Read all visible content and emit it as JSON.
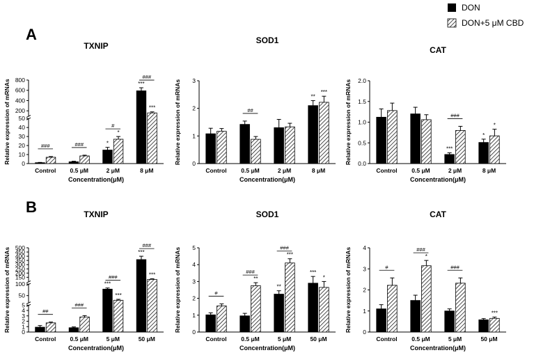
{
  "legend": {
    "items": [
      {
        "label": "DON",
        "fill": "solid",
        "color": "#000000"
      },
      {
        "label": "DON+5 μM CBD",
        "fill": "hatched",
        "color": "#000000"
      }
    ],
    "placement": "top-right"
  },
  "panel_letters": [
    "A",
    "B"
  ],
  "chart_data": [
    {
      "type": "bar",
      "panel": "A",
      "title": "TXNIP",
      "xlabel": "Concentration(μM)",
      "ylabel": "Relative expression of mRNAs",
      "categories": [
        "Control",
        "0.5 μM",
        "2 μM",
        "8 μM"
      ],
      "series": [
        {
          "name": "DON",
          "values": [
            1,
            2,
            15,
            590
          ],
          "errors": [
            0.3,
            0.6,
            3,
            60
          ]
        },
        {
          "name": "DON+5 μM CBD",
          "values": [
            7,
            8.5,
            27,
            160
          ],
          "errors": [
            0.8,
            0.8,
            3,
            20
          ]
        }
      ],
      "axis_segments": [
        {
          "range": [
            0,
            50
          ],
          "ticks": [
            0,
            10,
            20,
            30,
            40,
            50
          ]
        },
        {
          "range": [
            100,
            800
          ],
          "ticks": [
            200,
            400,
            600,
            800
          ]
        }
      ],
      "yticks": [
        0,
        10,
        20,
        30,
        40,
        50,
        200,
        400,
        600,
        800
      ],
      "ylim": [
        0,
        800
      ],
      "broken_axis": true,
      "annotations": [
        {
          "category": 0,
          "series": null,
          "text": "###",
          "type": "bracket"
        },
        {
          "category": 1,
          "series": null,
          "text": "###",
          "type": "bracket"
        },
        {
          "category": 2,
          "series": null,
          "text": "#",
          "type": "bracket"
        },
        {
          "category": 3,
          "series": null,
          "text": "###",
          "type": "bracket"
        },
        {
          "category": 2,
          "series": 0,
          "text": "*",
          "type": "star"
        },
        {
          "category": 2,
          "series": 1,
          "text": "*",
          "type": "star"
        },
        {
          "category": 3,
          "series": 0,
          "text": "***",
          "type": "star"
        },
        {
          "category": 3,
          "series": 1,
          "text": "***",
          "type": "star"
        }
      ]
    },
    {
      "type": "bar",
      "panel": "A",
      "title": "SOD1",
      "xlabel": "Concentration(μM)",
      "ylabel": "Relative expression of mRNAs",
      "categories": [
        "Control",
        "0.5 μM",
        "2 μM",
        "8 μM"
      ],
      "series": [
        {
          "name": "DON",
          "values": [
            1.08,
            1.42,
            1.3,
            2.1
          ],
          "errors": [
            0.2,
            0.12,
            0.3,
            0.18
          ]
        },
        {
          "name": "DON+5 μM CBD",
          "values": [
            1.17,
            0.88,
            1.33,
            2.22
          ],
          "errors": [
            0.1,
            0.1,
            0.13,
            0.22
          ]
        }
      ],
      "yticks": [
        0,
        1,
        2,
        3
      ],
      "ylim": [
        0,
        3
      ],
      "broken_axis": false,
      "annotations": [
        {
          "category": 1,
          "series": null,
          "text": "##",
          "type": "bracket"
        },
        {
          "category": 3,
          "series": 0,
          "text": "**",
          "type": "star"
        },
        {
          "category": 3,
          "series": 1,
          "text": "***",
          "type": "star"
        }
      ]
    },
    {
      "type": "bar",
      "panel": "A",
      "title": "CAT",
      "xlabel": "Concentration(μM)",
      "ylabel": "Relative expression of mRNAs",
      "categories": [
        "Control",
        "0.5 μM",
        "2 μM",
        "8 μM"
      ],
      "series": [
        {
          "name": "DON",
          "values": [
            1.12,
            1.2,
            0.22,
            0.51
          ],
          "errors": [
            0.2,
            0.16,
            0.04,
            0.08
          ]
        },
        {
          "name": "DON+5 μM CBD",
          "values": [
            1.28,
            1.06,
            0.8,
            0.67
          ],
          "errors": [
            0.18,
            0.12,
            0.1,
            0.16
          ]
        }
      ],
      "yticks": [
        0.0,
        0.5,
        1.0,
        1.5,
        2.0
      ],
      "ytick_labels": [
        "0.0",
        "0.5",
        "1.0",
        "1.5",
        "2.0"
      ],
      "ylim": [
        0,
        2
      ],
      "broken_axis": false,
      "annotations": [
        {
          "category": 2,
          "series": null,
          "text": "###",
          "type": "bracket"
        },
        {
          "category": 2,
          "series": 0,
          "text": "***",
          "type": "star"
        },
        {
          "category": 3,
          "series": 0,
          "text": "*",
          "type": "star"
        },
        {
          "category": 3,
          "series": 1,
          "text": "*",
          "type": "star"
        }
      ]
    },
    {
      "type": "bar",
      "panel": "B",
      "title": "TXNIP",
      "xlabel": "Concentration(μM)",
      "ylabel": "Relative expression of mRNAs",
      "categories": [
        "Control",
        "0.5 μM",
        "5 μM",
        "50 μM"
      ],
      "series": [
        {
          "name": "DON",
          "values": [
            0.9,
            0.8,
            78,
            360
          ],
          "errors": [
            0.3,
            0.15,
            5,
            40
          ]
        },
        {
          "name": "DON+5 μM CBD",
          "values": [
            1.7,
            2.8,
            30,
            125
          ],
          "errors": [
            0.15,
            0.25,
            4,
            8
          ]
        }
      ],
      "axis_segments": [
        {
          "range": [
            0,
            5
          ],
          "ticks": [
            0,
            1,
            2,
            3,
            4,
            5
          ]
        },
        {
          "range": [
            20,
            100
          ],
          "ticks": [
            50,
            100
          ]
        },
        {
          "range": [
            100,
            500
          ],
          "ticks": [
            150,
            200,
            250,
            300,
            350,
            400,
            450,
            500
          ]
        }
      ],
      "yticks": [
        0,
        1,
        2,
        3,
        4,
        5,
        50,
        100,
        150,
        200,
        250,
        300,
        350,
        400,
        450,
        500
      ],
      "ylim": [
        0,
        500
      ],
      "broken_axis": true,
      "annotations": [
        {
          "category": 0,
          "series": null,
          "text": "##",
          "type": "bracket"
        },
        {
          "category": 1,
          "series": null,
          "text": "###",
          "type": "bracket"
        },
        {
          "category": 2,
          "series": null,
          "text": "###",
          "type": "bracket"
        },
        {
          "category": 3,
          "series": null,
          "text": "###",
          "type": "bracket"
        },
        {
          "category": 2,
          "series": 0,
          "text": "***",
          "type": "star"
        },
        {
          "category": 2,
          "series": 1,
          "text": "***",
          "type": "star"
        },
        {
          "category": 3,
          "series": 0,
          "text": "***",
          "type": "star"
        },
        {
          "category": 3,
          "series": 1,
          "text": "***",
          "type": "star"
        }
      ]
    },
    {
      "type": "bar",
      "panel": "B",
      "title": "SOD1",
      "xlabel": "Concentration(μM)",
      "ylabel": "Relative expression of mRNAs",
      "categories": [
        "Control",
        "0.5 μM",
        "5 μM",
        "50 μM"
      ],
      "series": [
        {
          "name": "DON",
          "values": [
            1.02,
            0.96,
            2.25,
            2.9
          ],
          "errors": [
            0.12,
            0.15,
            0.2,
            0.4
          ]
        },
        {
          "name": "DON+5 μM CBD",
          "values": [
            1.55,
            2.75,
            4.1,
            2.65
          ],
          "errors": [
            0.12,
            0.18,
            0.25,
            0.35
          ]
        }
      ],
      "yticks": [
        0,
        1,
        2,
        3,
        4,
        5
      ],
      "ylim": [
        0,
        5
      ],
      "broken_axis": false,
      "annotations": [
        {
          "category": 0,
          "series": null,
          "text": "#",
          "type": "bracket"
        },
        {
          "category": 1,
          "series": null,
          "text": "###",
          "type": "bracket"
        },
        {
          "category": 2,
          "series": null,
          "text": "###",
          "type": "bracket"
        },
        {
          "category": 1,
          "series": 1,
          "text": "**",
          "type": "star"
        },
        {
          "category": 2,
          "series": 0,
          "text": "**",
          "type": "star"
        },
        {
          "category": 2,
          "series": 1,
          "text": "***",
          "type": "star"
        },
        {
          "category": 3,
          "series": 0,
          "text": "***",
          "type": "star"
        },
        {
          "category": 3,
          "series": 1,
          "text": "*",
          "type": "star"
        }
      ]
    },
    {
      "type": "bar",
      "panel": "B",
      "title": "CAT",
      "xlabel": "Concentration(μM)",
      "ylabel": "Relative expression of mRNAs",
      "categories": [
        "Control",
        "0.5 μM",
        "5 μM",
        "50 μM"
      ],
      "series": [
        {
          "name": "DON",
          "values": [
            1.1,
            1.5,
            1.0,
            0.58
          ],
          "errors": [
            0.2,
            0.25,
            0.1,
            0.06
          ]
        },
        {
          "name": "DON+5 μM CBD",
          "values": [
            2.22,
            3.15,
            2.32,
            0.65
          ],
          "errors": [
            0.35,
            0.25,
            0.25,
            0.06
          ]
        }
      ],
      "yticks": [
        0,
        1,
        2,
        3,
        4
      ],
      "ylim": [
        0,
        4
      ],
      "broken_axis": false,
      "annotations": [
        {
          "category": 0,
          "series": null,
          "text": "#",
          "type": "bracket"
        },
        {
          "category": 1,
          "series": null,
          "text": "###",
          "type": "bracket"
        },
        {
          "category": 2,
          "series": null,
          "text": "###",
          "type": "bracket"
        },
        {
          "category": 1,
          "series": 1,
          "text": "*",
          "type": "star"
        },
        {
          "category": 3,
          "series": 1,
          "text": "***",
          "type": "star"
        }
      ]
    }
  ]
}
